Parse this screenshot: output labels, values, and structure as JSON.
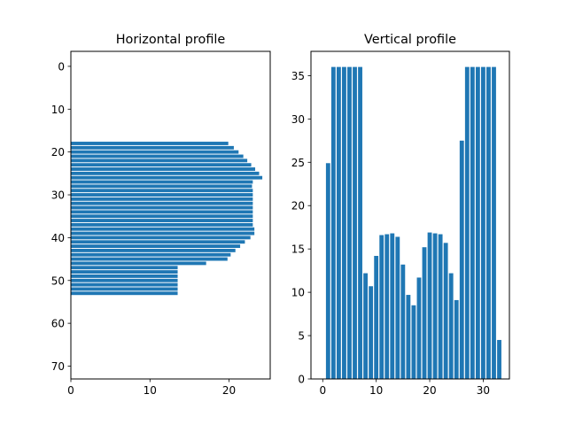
{
  "colors": {
    "bar": "#1f77b4",
    "axis": "#000000",
    "background": "#ffffff"
  },
  "chart_data": [
    {
      "type": "bar",
      "orientation": "horizontal",
      "title": "Horizontal profile",
      "xlabel": "",
      "ylabel": "",
      "xlim": [
        0,
        25.2
      ],
      "ylim": [
        73,
        -3.5
      ],
      "y_inverted": true,
      "xticks": [
        0,
        10,
        20
      ],
      "yticks": [
        0,
        10,
        20,
        30,
        40,
        50,
        60,
        70
      ],
      "grid": false,
      "categories": [
        18,
        19,
        20,
        21,
        22,
        23,
        24,
        25,
        26,
        27,
        28,
        29,
        30,
        31,
        32,
        33,
        34,
        35,
        36,
        37,
        38,
        39,
        40,
        41,
        42,
        43,
        44,
        45,
        46,
        47,
        48,
        49,
        50,
        51,
        52,
        53
      ],
      "values": [
        19.9,
        20.6,
        21.2,
        21.8,
        22.3,
        22.8,
        23.3,
        23.8,
        24.2,
        23.0,
        22.9,
        23.0,
        23.0,
        23.0,
        23.0,
        23.0,
        23.0,
        23.0,
        23.0,
        23.0,
        23.2,
        23.2,
        22.7,
        22.0,
        21.4,
        20.8,
        20.2,
        19.8,
        17.1,
        13.5,
        13.5,
        13.5,
        13.5,
        13.5,
        13.5,
        13.5
      ]
    },
    {
      "type": "bar",
      "orientation": "vertical",
      "title": "Vertical profile",
      "xlabel": "",
      "ylabel": "",
      "xlim": [
        -2.2,
        34.9
      ],
      "ylim": [
        0,
        37.8
      ],
      "xticks": [
        0,
        10,
        20,
        30
      ],
      "yticks": [
        0,
        5,
        10,
        15,
        20,
        25,
        30,
        35
      ],
      "grid": false,
      "categories": [
        1,
        2,
        3,
        4,
        5,
        6,
        7,
        8,
        9,
        10,
        11,
        12,
        13,
        14,
        15,
        16,
        17,
        18,
        19,
        20,
        21,
        22,
        23,
        24,
        25,
        26,
        27,
        28,
        29,
        30,
        31,
        32,
        33
      ],
      "values": [
        24.9,
        36.0,
        36.0,
        36.0,
        36.0,
        36.0,
        36.0,
        12.2,
        10.7,
        14.2,
        16.6,
        16.7,
        16.8,
        16.4,
        13.2,
        9.7,
        8.5,
        11.7,
        15.2,
        16.9,
        16.8,
        16.7,
        15.7,
        12.2,
        9.1,
        27.5,
        36.0,
        36.0,
        36.0,
        36.0,
        36.0,
        36.0,
        4.5
      ]
    }
  ]
}
